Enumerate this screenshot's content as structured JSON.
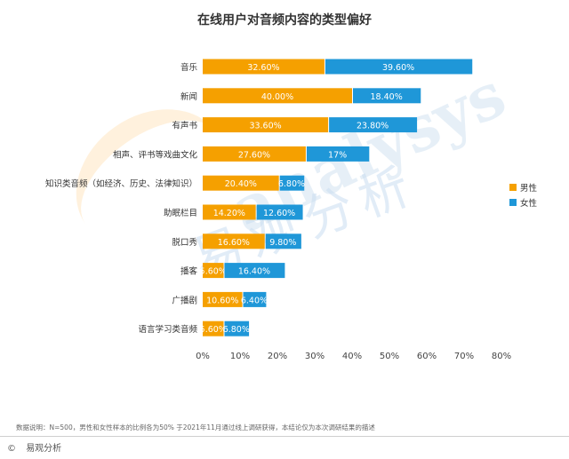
{
  "chart_data": {
    "type": "bar",
    "orientation": "horizontal",
    "stacked": true,
    "title": "在线用户对音频内容的类型偏好",
    "categories": [
      "音乐",
      "新闻",
      "有声书",
      "相声、评书等戏曲文化",
      "知识类音频（如经济、历史、法律知识）",
      "助眠栏目",
      "脱口秀",
      "播客",
      "广播剧",
      "语言学习类音频"
    ],
    "series": [
      {
        "name": "男性",
        "color": "#F5A000",
        "values": [
          32.6,
          40.0,
          33.6,
          27.6,
          20.4,
          14.2,
          16.6,
          5.6,
          10.6,
          5.6
        ],
        "labels": [
          "32.60%",
          "40.00%",
          "33.60%",
          "27.60%",
          "20.40%",
          "14.20%",
          "16.60%",
          "5.60%",
          "10.60%",
          "5.60%"
        ]
      },
      {
        "name": "女性",
        "color": "#1F97D8",
        "values": [
          39.6,
          18.4,
          23.8,
          17.0,
          6.8,
          12.6,
          9.8,
          16.4,
          6.4,
          6.8
        ],
        "labels": [
          "39.60%",
          "18.40%",
          "23.80%",
          "17%",
          "6.80%",
          "12.60%",
          "9.80%",
          "16.40%",
          "6.40%",
          "6.80%"
        ]
      }
    ],
    "xlim": [
      0,
      80
    ],
    "xticks": [
      "0%",
      "10%",
      "20%",
      "30%",
      "40%",
      "50%",
      "60%",
      "70%",
      "80%"
    ],
    "legend_position": "right",
    "grid": false
  },
  "footnote": "数据说明：N=500，男性和女性样本的比例各为50% 于2021年11月通过线上调研获得，本结论仅为本次调研结果的描述",
  "brand": {
    "copyright": "©",
    "name": "易观分析"
  },
  "watermark": {
    "en": "analysys",
    "cn": "易观分析"
  }
}
